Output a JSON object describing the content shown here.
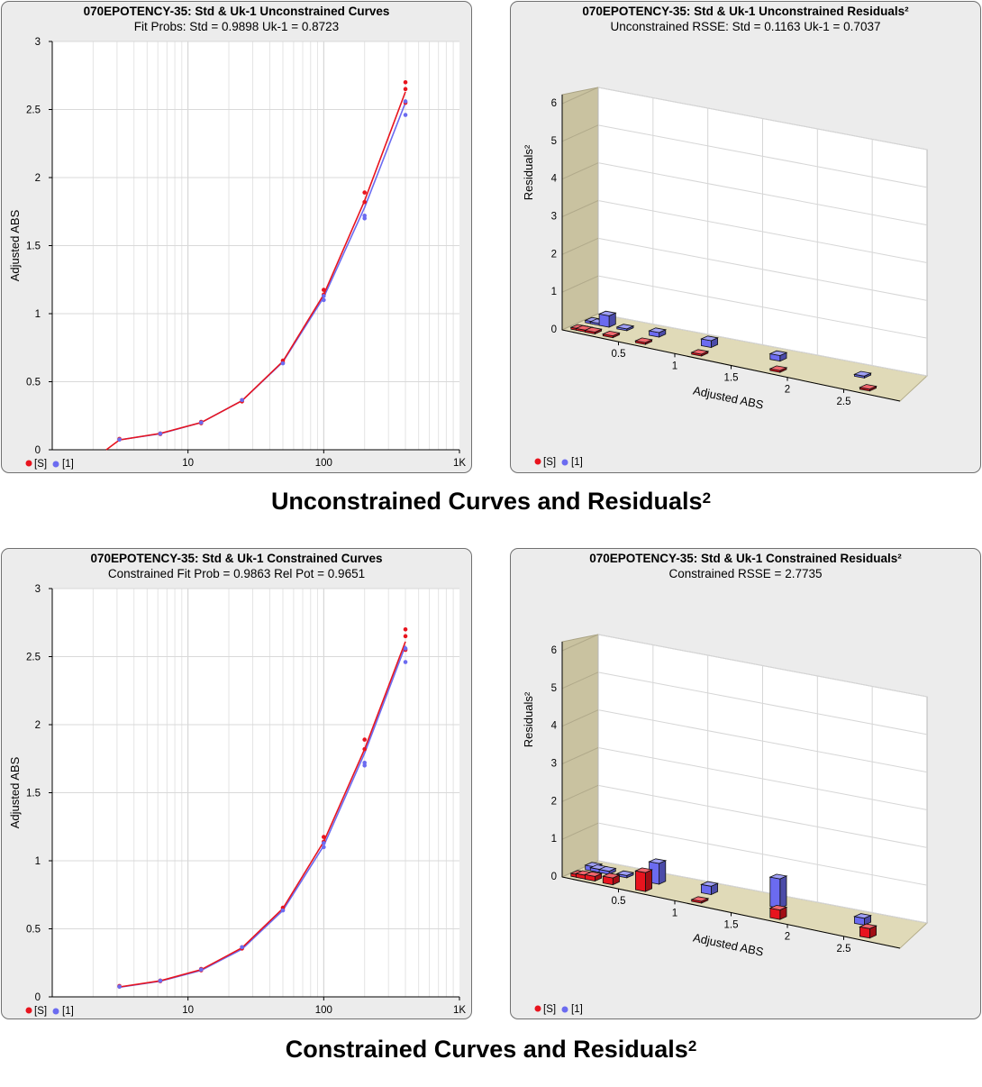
{
  "colors": {
    "standard": "#e8141e",
    "unknown": "#6b6bf0",
    "floor": "#ddd7b3",
    "wall": "#c7c1a0"
  },
  "captions": {
    "unconstrained": "Unconstrained Curves and Residuals",
    "unconstrained_sup": "2",
    "constrained": "Constrained Curves and Residuals",
    "constrained_sup": "2"
  },
  "chart_data": [
    {
      "type": "scatter",
      "title": "070EPOTENCY-35: Std & Uk-1  Unconstrained Curves",
      "subtitle": "Fit Probs: Std = 0.9898  Uk-1 = 0.8723",
      "xscale": "log",
      "xlim": [
        1,
        1000
      ],
      "xticks": [
        10,
        100,
        1000
      ],
      "xtick_labels": [
        "10",
        "100",
        "1K"
      ],
      "ylim": [
        0,
        3
      ],
      "yticks": [
        "0",
        "0.5",
        "1",
        "1.5",
        "2",
        "2.5",
        "3"
      ],
      "xlabel": "",
      "ylabel": "Adjusted ABS",
      "grid": true,
      "legend": "bottom-left",
      "series": [
        {
          "name": "[S]",
          "color": "#e8141e",
          "x": [
            3.125,
            3.125,
            6.25,
            6.25,
            12.5,
            12.5,
            25,
            25,
            50,
            50,
            100,
            100,
            200,
            200,
            400,
            400,
            400
          ],
          "y": [
            0.075,
            0.08,
            0.115,
            0.12,
            0.195,
            0.205,
            0.355,
            0.365,
            0.64,
            0.655,
            1.14,
            1.175,
            1.82,
            1.89,
            2.55,
            2.65,
            2.7
          ],
          "curve": [
            [
              2.5,
              0.0
            ],
            [
              3.125,
              0.072
            ],
            [
              6.25,
              0.12
            ],
            [
              12.5,
              0.2
            ],
            [
              25,
              0.36
            ],
            [
              50,
              0.65
            ],
            [
              100,
              1.14
            ],
            [
              200,
              1.83
            ],
            [
              400,
              2.63
            ]
          ]
        },
        {
          "name": "[1]",
          "color": "#6b6bf0",
          "x": [
            3.125,
            6.25,
            12.5,
            25,
            50,
            100,
            100,
            200,
            200,
            400,
            400
          ],
          "y": [
            0.075,
            0.118,
            0.2,
            0.365,
            0.635,
            1.1,
            1.13,
            1.7,
            1.72,
            2.46,
            2.56
          ],
          "curve": [
            [
              3.125,
              0.073
            ],
            [
              6.25,
              0.118
            ],
            [
              12.5,
              0.2
            ],
            [
              25,
              0.36
            ],
            [
              50,
              0.645
            ],
            [
              100,
              1.12
            ],
            [
              200,
              1.78
            ],
            [
              400,
              2.55
            ]
          ]
        }
      ]
    },
    {
      "type": "bar3d",
      "title": "070EPOTENCY-35: Std & Uk-1  Unconstrained Residuals²",
      "subtitle": "Unconstrained RSSE: Std = 0.1163  Uk-1 = 0.7037",
      "xlabel": "Adjusted ABS",
      "ylabel": "Residuals²",
      "xticks": [
        "0.5",
        "1",
        "1.5",
        "2",
        "2.5"
      ],
      "xtick_values": [
        0.5,
        1,
        1.5,
        2,
        2.5
      ],
      "yticks": [
        "0",
        "1",
        "2",
        "3",
        "4",
        "5",
        "6"
      ],
      "zlim": [
        0,
        6
      ],
      "legend": "bottom-left",
      "series": [
        {
          "name": "[S]",
          "color": "#e8141e",
          "x": [
            0.075,
            0.12,
            0.2,
            0.36,
            0.65,
            1.15,
            1.85,
            2.65
          ],
          "values": [
            0.03,
            0.03,
            0.03,
            0.02,
            0.02,
            0.02,
            0.03,
            0.04
          ]
        },
        {
          "name": "[1]",
          "color": "#6b6bf0",
          "x": [
            0.075,
            0.12,
            0.2,
            0.36,
            0.65,
            1.12,
            1.74,
            2.5
          ],
          "values": [
            0.06,
            0.03,
            0.3,
            0.04,
            0.12,
            0.18,
            0.15,
            0.05
          ]
        }
      ]
    },
    {
      "type": "scatter",
      "title": "070EPOTENCY-35: Std & Uk-1 Constrained Curves",
      "subtitle": "Constrained Fit Prob = 0.9863  Rel Pot = 0.9651",
      "xscale": "log",
      "xlim": [
        1,
        1000
      ],
      "xticks": [
        10,
        100,
        1000
      ],
      "xtick_labels": [
        "10",
        "100",
        "1K"
      ],
      "ylim": [
        0,
        3
      ],
      "yticks": [
        "0",
        "0.5",
        "1",
        "1.5",
        "2",
        "2.5",
        "3"
      ],
      "xlabel": "",
      "ylabel": "Adjusted ABS",
      "grid": true,
      "legend": "bottom-left",
      "series": [
        {
          "name": "[S]",
          "color": "#e8141e",
          "x": [
            3.125,
            3.125,
            6.25,
            6.25,
            12.5,
            12.5,
            25,
            25,
            50,
            50,
            100,
            100,
            200,
            200,
            400,
            400,
            400
          ],
          "y": [
            0.075,
            0.08,
            0.115,
            0.12,
            0.195,
            0.205,
            0.355,
            0.365,
            0.64,
            0.655,
            1.14,
            1.175,
            1.82,
            1.89,
            2.55,
            2.65,
            2.7
          ],
          "curve": [
            [
              3.125,
              0.073
            ],
            [
              6.25,
              0.118
            ],
            [
              12.5,
              0.2
            ],
            [
              25,
              0.36
            ],
            [
              50,
              0.65
            ],
            [
              100,
              1.14
            ],
            [
              200,
              1.82
            ],
            [
              400,
              2.61
            ]
          ]
        },
        {
          "name": "[1]",
          "color": "#6b6bf0",
          "x": [
            3.125,
            6.25,
            12.5,
            25,
            50,
            100,
            100,
            200,
            200,
            400,
            400
          ],
          "y": [
            0.075,
            0.118,
            0.2,
            0.365,
            0.635,
            1.1,
            1.13,
            1.7,
            1.72,
            2.46,
            2.56
          ],
          "curve": [
            [
              3.125,
              0.071
            ],
            [
              6.25,
              0.115
            ],
            [
              12.5,
              0.195
            ],
            [
              25,
              0.35
            ],
            [
              50,
              0.635
            ],
            [
              100,
              1.11
            ],
            [
              200,
              1.79
            ],
            [
              400,
              2.58
            ]
          ]
        }
      ]
    },
    {
      "type": "bar3d",
      "title": "070EPOTENCY-35: Std & Uk-1  Constrained Residuals²",
      "subtitle": "Constrained RSSE = 2.7735",
      "xlabel": "Adjusted ABS",
      "ylabel": "Residuals²",
      "xticks": [
        "0.5",
        "1",
        "1.5",
        "2",
        "2.5"
      ],
      "xtick_values": [
        0.5,
        1,
        1.5,
        2,
        2.5
      ],
      "yticks": [
        "0",
        "1",
        "2",
        "3",
        "4",
        "5",
        "6"
      ],
      "zlim": [
        0,
        6
      ],
      "legend": "bottom-left",
      "series": [
        {
          "name": "[S]",
          "color": "#e8141e",
          "x": [
            0.075,
            0.12,
            0.2,
            0.36,
            0.65,
            1.15,
            1.85,
            2.65
          ],
          "values": [
            0.08,
            0.1,
            0.12,
            0.18,
            0.5,
            0.02,
            0.25,
            0.25
          ]
        },
        {
          "name": "[1]",
          "color": "#6b6bf0",
          "x": [
            0.075,
            0.12,
            0.2,
            0.36,
            0.65,
            1.12,
            1.74,
            2.5
          ],
          "values": [
            0.12,
            0.08,
            0.08,
            0.06,
            0.55,
            0.22,
            0.78,
            0.18
          ]
        }
      ]
    }
  ]
}
